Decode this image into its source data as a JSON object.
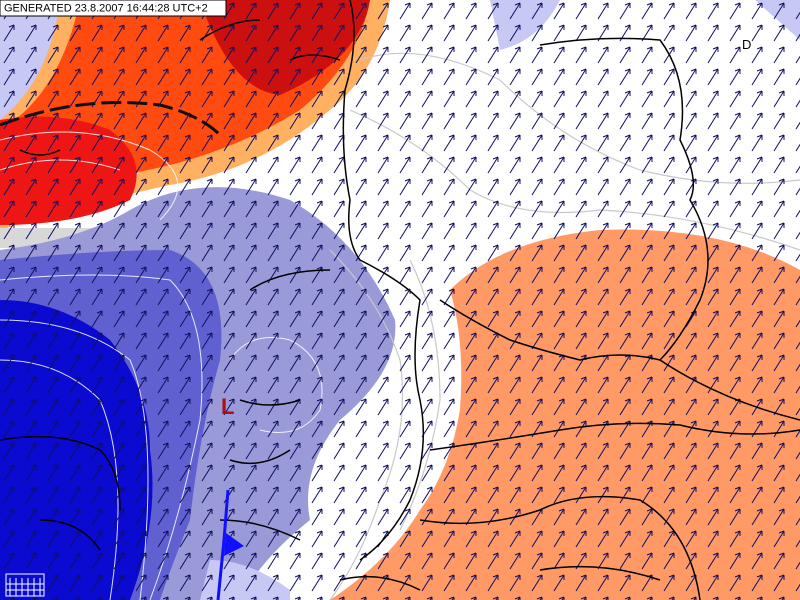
{
  "header": {
    "generated": "GENERATED 23.8.2007 16:44:28 UTC+2"
  },
  "markers": {
    "low": "L",
    "high": "D"
  }
}
